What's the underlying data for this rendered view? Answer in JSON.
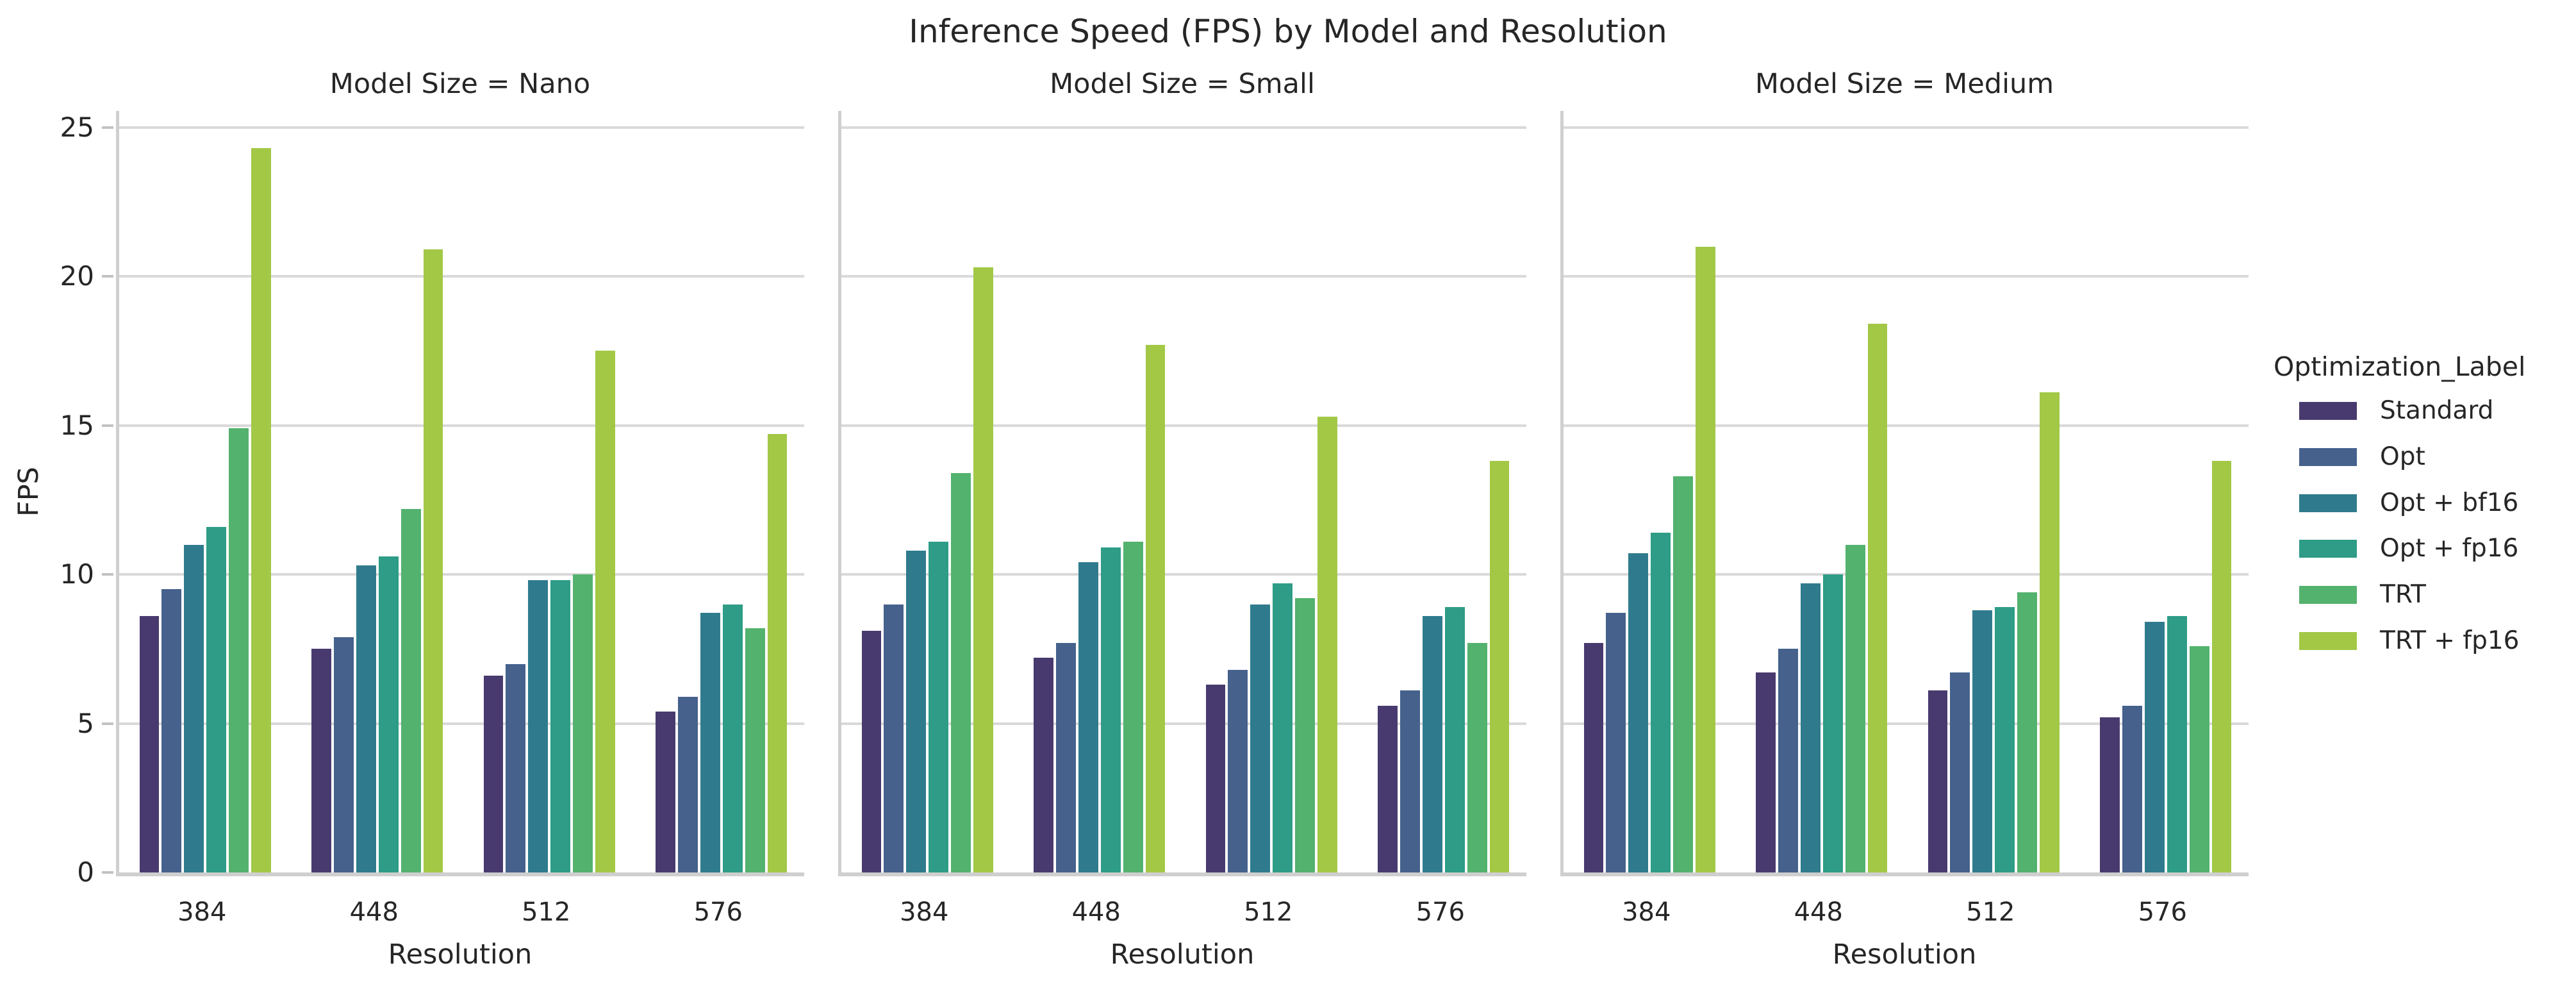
{
  "title": "Inference Speed (FPS) by Model and Resolution",
  "chart_data": {
    "type": "bar",
    "title": "Inference Speed (FPS) by Model and Resolution",
    "xlabel": "Resolution",
    "ylabel": "FPS",
    "categories": [
      "384",
      "448",
      "512",
      "576"
    ],
    "yticks": [
      0,
      5,
      10,
      15,
      20,
      25
    ],
    "ylim": [
      0,
      25.55
    ],
    "grid": true,
    "legend_title": "Optimization_Label",
    "legend_position": "right",
    "series_names": [
      "Standard",
      "Opt",
      "Opt + bf16",
      "Opt + fp16",
      "TRT",
      "TRT + fp16"
    ],
    "colors": [
      "#483a6e",
      "#45618c",
      "#2f7b8d",
      "#2e9c87",
      "#53b26e",
      "#a2c846"
    ],
    "facets": [
      {
        "title": "Model Size = Nano",
        "series": [
          {
            "name": "Standard",
            "values": [
              8.6,
              7.5,
              6.6,
              5.4
            ]
          },
          {
            "name": "Opt",
            "values": [
              9.5,
              7.9,
              7.0,
              5.9
            ]
          },
          {
            "name": "Opt + bf16",
            "values": [
              11.0,
              10.3,
              9.8,
              8.7
            ]
          },
          {
            "name": "Opt + fp16",
            "values": [
              11.6,
              10.6,
              9.8,
              9.0
            ]
          },
          {
            "name": "TRT",
            "values": [
              14.9,
              12.2,
              10.0,
              8.2
            ]
          },
          {
            "name": "TRT + fp16",
            "values": [
              24.3,
              20.9,
              17.5,
              14.7
            ]
          }
        ]
      },
      {
        "title": "Model Size = Small",
        "series": [
          {
            "name": "Standard",
            "values": [
              8.1,
              7.2,
              6.3,
              5.6
            ]
          },
          {
            "name": "Opt",
            "values": [
              9.0,
              7.7,
              6.8,
              6.1
            ]
          },
          {
            "name": "Opt + bf16",
            "values": [
              10.8,
              10.4,
              9.0,
              8.6
            ]
          },
          {
            "name": "Opt + fp16",
            "values": [
              11.1,
              10.9,
              9.7,
              8.9
            ]
          },
          {
            "name": "TRT",
            "values": [
              13.4,
              11.1,
              9.2,
              7.7
            ]
          },
          {
            "name": "TRT + fp16",
            "values": [
              20.3,
              17.7,
              15.3,
              13.8
            ]
          }
        ]
      },
      {
        "title": "Model Size = Medium",
        "series": [
          {
            "name": "Standard",
            "values": [
              7.7,
              6.7,
              6.1,
              5.2
            ]
          },
          {
            "name": "Opt",
            "values": [
              8.7,
              7.5,
              6.7,
              5.6
            ]
          },
          {
            "name": "Opt + bf16",
            "values": [
              10.7,
              9.7,
              8.8,
              8.4
            ]
          },
          {
            "name": "Opt + fp16",
            "values": [
              11.4,
              10.0,
              8.9,
              8.6
            ]
          },
          {
            "name": "TRT",
            "values": [
              13.3,
              11.0,
              9.4,
              7.6
            ]
          },
          {
            "name": "TRT + fp16",
            "values": [
              21.0,
              18.4,
              16.1,
              13.8
            ]
          }
        ]
      }
    ]
  }
}
